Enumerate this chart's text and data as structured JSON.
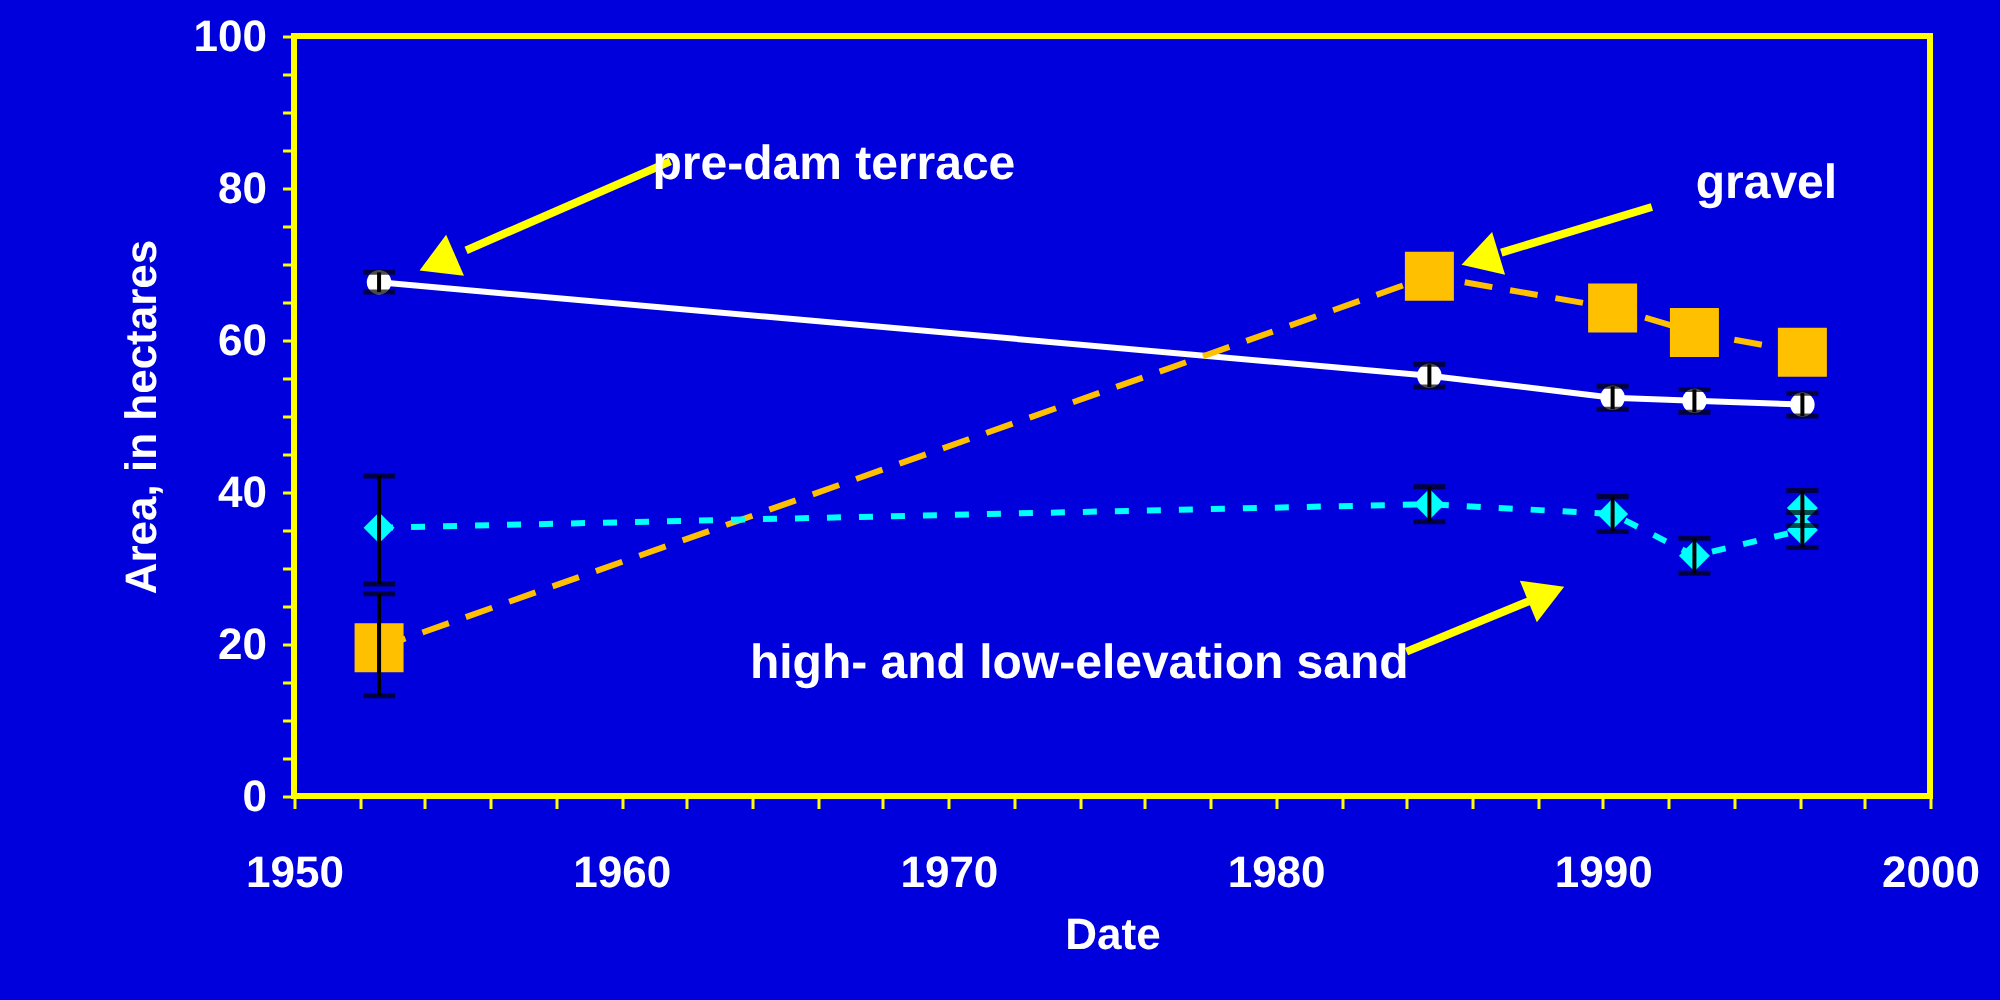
{
  "chart_data": {
    "type": "line",
    "xlabel": "Date",
    "ylabel": "Area, in hectares",
    "x": [
      1952.6,
      1984.7,
      1990.3,
      1992.8,
      1996.1
    ],
    "series": [
      {
        "color": "#ffffff",
        "marker": "circle",
        "line_style": "solid",
        "values": [
          67.6,
          55.3,
          52.4,
          52.0,
          51.5
        ],
        "errors": [
          1.3,
          1.5,
          1.5,
          1.5,
          1.5
        ]
      },
      {
        "color": "#ffc000",
        "marker": "square",
        "line_style": "dashed",
        "values": [
          19.5,
          68.4,
          64.2,
          61.0,
          58.4
        ],
        "errors": [
          [
            13.2,
            26.6
          ],
          null,
          null,
          null,
          null
        ]
      },
      {
        "color": "#00ffff",
        "marker": "diamond",
        "line_style": "dotted",
        "values": [
          35.3,
          38.4,
          37.1,
          31.6,
          35.0
        ],
        "errors": [
          [
            27.9,
            42.1
          ],
          2.3,
          2.3,
          2.3,
          2.3
        ]
      },
      {
        "type": "scatter",
        "color": "#00ffff",
        "marker": "diamond",
        "x": [
          1996.1
        ],
        "values": [
          37.9
        ],
        "errors": [
          2.3
        ]
      }
    ],
    "xlim": [
      1950,
      2000
    ],
    "xticks": [
      1950,
      {
        "value": 1952,
        "label": null
      },
      {
        "value": 1954,
        "label": null
      },
      {
        "value": 1956,
        "label": null
      },
      {
        "value": 1958,
        "label": null
      },
      1960,
      {
        "value": 1962,
        "label": null
      },
      {
        "value": 1964,
        "label": null
      },
      {
        "value": 1966,
        "label": null
      },
      {
        "value": 1968,
        "label": null
      },
      1970,
      {
        "value": 1972,
        "label": null
      },
      {
        "value": 1974,
        "label": null
      },
      {
        "value": 1976,
        "label": null
      },
      {
        "value": 1978,
        "label": null
      },
      1980,
      {
        "value": 1982,
        "label": null
      },
      {
        "value": 1984,
        "label": null
      },
      {
        "value": 1986,
        "label": null
      },
      {
        "value": 1988,
        "label": null
      },
      1990,
      {
        "value": 1992,
        "label": null
      },
      {
        "value": 1994,
        "label": null
      },
      {
        "value": 1996,
        "label": null
      },
      {
        "value": 1998,
        "label": null
      },
      2000
    ],
    "ylim": [
      0,
      100
    ],
    "yticks": [
      0,
      {
        "value": 5,
        "label": null
      },
      {
        "value": 10,
        "label": null
      },
      {
        "value": 15,
        "label": null
      },
      20,
      {
        "value": 25,
        "label": null
      },
      {
        "value": 30,
        "label": null
      },
      {
        "value": 35,
        "label": null
      },
      40,
      {
        "value": 45,
        "label": null
      },
      {
        "value": 50,
        "label": null
      },
      {
        "value": 55,
        "label": null
      },
      60,
      {
        "value": 65,
        "label": null
      },
      {
        "value": 70,
        "label": null
      },
      {
        "value": 75,
        "label": null
      },
      80,
      {
        "value": 85,
        "label": null
      },
      {
        "value": 90,
        "label": null
      },
      {
        "value": 95,
        "label": null
      },
      100
    ],
    "grid": false,
    "annotations": [
      "pre-dam terrace",
      "gravel",
      "high- and low-elevation sand"
    ]
  }
}
